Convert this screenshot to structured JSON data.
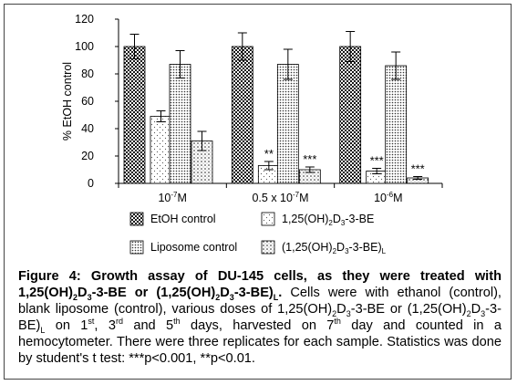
{
  "chart_data": {
    "type": "bar",
    "ylabel": "% EtOH control",
    "ylim": [
      0,
      120
    ],
    "yticks": [
      0,
      20,
      40,
      60,
      80,
      100,
      120
    ],
    "grid": false,
    "legend_position": "bottom",
    "categories": [
      {
        "base": "10",
        "exp": "-7",
        "unit": "M"
      },
      {
        "base": "0.5 x 10",
        "exp": "-7",
        "unit": "M"
      },
      {
        "base": "10",
        "exp": "-6",
        "unit": "M"
      }
    ],
    "series": [
      {
        "name": "EtOH control",
        "pattern": "dots-dense",
        "values": [
          100,
          100,
          100
        ],
        "errors": [
          9,
          10,
          11
        ],
        "annotations": [
          "",
          "",
          ""
        ]
      },
      {
        "name": "1,25(OH)2D3-3-BE",
        "pattern": "sparse-dots",
        "values": [
          49,
          13,
          9
        ],
        "errors": [
          4,
          3,
          2
        ],
        "annotations": [
          "",
          "**",
          "***"
        ]
      },
      {
        "name": "Liposome control",
        "pattern": "dots-medium",
        "values": [
          87,
          87,
          86
        ],
        "errors": [
          10,
          11,
          10
        ],
        "annotations": [
          "",
          "",
          ""
        ]
      },
      {
        "name": "(1,25(OH)2D3-3-BE)L",
        "pattern": "dots-light",
        "values": [
          31,
          10,
          4
        ],
        "errors": [
          7,
          2,
          1
        ],
        "annotations": [
          "",
          "***",
          "***"
        ]
      }
    ]
  },
  "caption": {
    "lead": "Figure 4: Growth assay of DU-145 cells, as they were treated with 1,25(OH)2D3-3-BE or (1,25(OH)2D3-3-BE)L.",
    "body": "Cells were with ethanol (control), blank liposome (control), various doses of 1,25(OH)2D3-3-BE or (1,25(OH)2D3-3-BE)L on 1st, 3rd and 5th days, harvested on 7th day and counted in a hemocytometer. There were three replicates for each sample. Statistics was done by student's t test: ***p<0.001, **p<0.01."
  }
}
